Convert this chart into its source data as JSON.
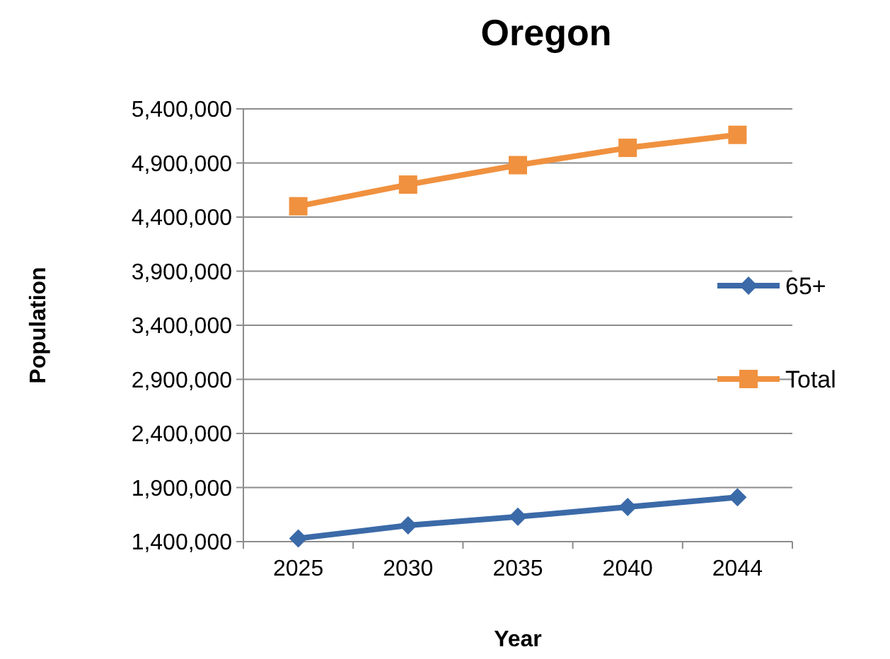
{
  "chart_data": {
    "type": "line",
    "title": "Oregon",
    "xlabel": "Year",
    "ylabel": "Population",
    "categories": [
      "2025",
      "2030",
      "2035",
      "2040",
      "2044"
    ],
    "series": [
      {
        "name": "65+",
        "color": "#3b6aa8",
        "marker": "diamond",
        "values": [
          1430000,
          1550000,
          1630000,
          1720000,
          1810000
        ]
      },
      {
        "name": "Total",
        "color": "#f0913f",
        "marker": "square",
        "values": [
          4500000,
          4700000,
          4880000,
          5040000,
          5160000
        ]
      }
    ],
    "ylim": [
      1400000,
      5400000
    ],
    "yticks": [
      {
        "value": 1400000,
        "label": "1,400,000"
      },
      {
        "value": 1900000,
        "label": "1,900,000"
      },
      {
        "value": 2400000,
        "label": "2,400,000"
      },
      {
        "value": 2900000,
        "label": "2,900,000"
      },
      {
        "value": 3400000,
        "label": "3,400,000"
      },
      {
        "value": 3900000,
        "label": "3,900,000"
      },
      {
        "value": 4400000,
        "label": "4,400,000"
      },
      {
        "value": 4900000,
        "label": "4,900,000"
      },
      {
        "value": 5400000,
        "label": "5,400,000"
      }
    ],
    "grid": "y",
    "legend": "right"
  }
}
